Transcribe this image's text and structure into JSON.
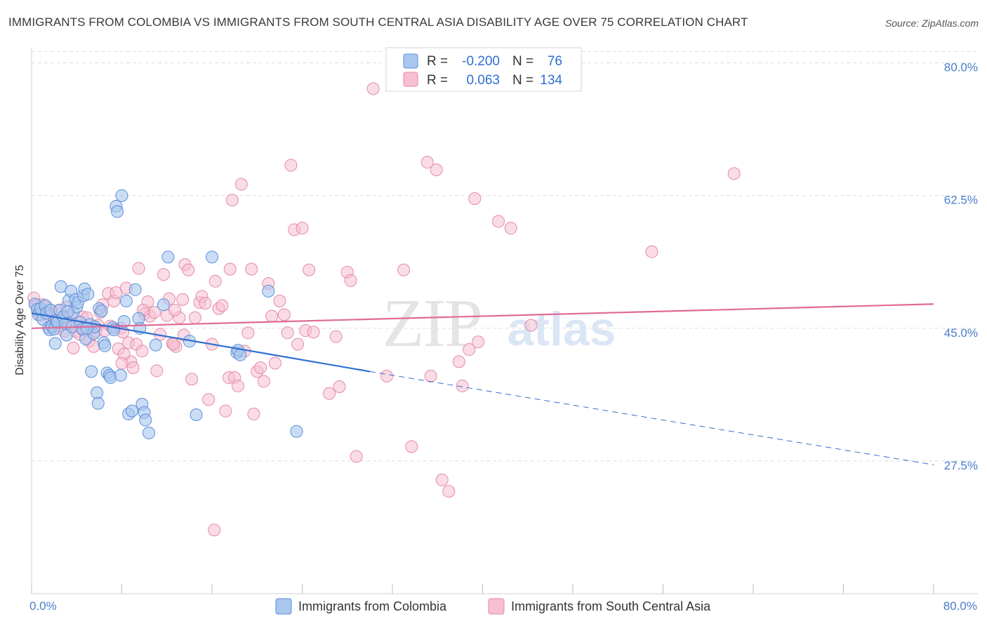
{
  "title": "IMMIGRANTS FROM COLOMBIA VS IMMIGRANTS FROM SOUTH CENTRAL ASIA DISABILITY AGE OVER 75 CORRELATION CHART",
  "source": "Source: ZipAtlas.com",
  "watermark": {
    "zip": "ZIP",
    "atlas": "atlas"
  },
  "colors": {
    "blue_fill": "#a9c6ee",
    "blue_stroke": "#5b8fd9",
    "blue_line": "#2f6fd0",
    "pink_fill": "#f6bfd2",
    "pink_stroke": "#e58aaa",
    "pink_line": "#e06b95",
    "grid": "#dddddd",
    "axis_text": "#4a7cc9"
  },
  "legend": {
    "rows": [
      {
        "r_label": "R =",
        "r_value": "-0.200",
        "n_label": "N =",
        "n_value": "76",
        "series": "blue"
      },
      {
        "r_label": "R =",
        "r_value": "0.063",
        "n_label": "N =",
        "n_value": "134",
        "series": "pink"
      }
    ]
  },
  "bottom_legend": [
    {
      "label": "Immigrants from Colombia",
      "series": "blue"
    },
    {
      "label": "Immigrants from South Central Asia",
      "series": "pink"
    }
  ],
  "chart_data": {
    "type": "scatter",
    "title": "IMMIGRANTS FROM COLOMBIA VS IMMIGRANTS FROM SOUTH CENTRAL ASIA DISABILITY AGE OVER 75 CORRELATION CHART",
    "xlabel": "",
    "ylabel": "Disability Age Over 75",
    "xlim": [
      0,
      80
    ],
    "ylim": [
      10,
      82
    ],
    "x_tick_labels": [
      "0.0%",
      "80.0%"
    ],
    "y_ticks": [
      27.5,
      45.0,
      62.5,
      80.0
    ],
    "y_tick_labels": [
      "27.5%",
      "45.0%",
      "62.5%",
      "80.0%"
    ],
    "grid": true,
    "legend_position": "top-center",
    "series": [
      {
        "name": "Immigrants from Colombia",
        "color": "#a9c6ee",
        "trend": {
          "x": [
            0,
            30
          ],
          "y": [
            47.0,
            39.3
          ],
          "dashed_to": [
            80,
            27.0
          ]
        },
        "points": [
          [
            0.3,
            48.2
          ],
          [
            0.5,
            47.5
          ],
          [
            0.6,
            46.8
          ],
          [
            0.8,
            47.6
          ],
          [
            1.0,
            46.2
          ],
          [
            1.2,
            48.0
          ],
          [
            1.3,
            47.0
          ],
          [
            1.5,
            45.1
          ],
          [
            1.6,
            44.8
          ],
          [
            1.7,
            47.4
          ],
          [
            1.8,
            45.3
          ],
          [
            2.0,
            44.9
          ],
          [
            2.1,
            43.0
          ],
          [
            2.2,
            46.0
          ],
          [
            2.3,
            45.8
          ],
          [
            2.5,
            47.4
          ],
          [
            2.6,
            50.5
          ],
          [
            2.8,
            46.5
          ],
          [
            3.0,
            45.6
          ],
          [
            3.1,
            44.1
          ],
          [
            3.3,
            48.7
          ],
          [
            3.5,
            49.9
          ],
          [
            3.6,
            45.2
          ],
          [
            3.7,
            47.1
          ],
          [
            3.9,
            48.8
          ],
          [
            4.0,
            47.8
          ],
          [
            4.1,
            48.4
          ],
          [
            4.3,
            45.8
          ],
          [
            4.5,
            44.9
          ],
          [
            4.6,
            49.3
          ],
          [
            4.7,
            50.2
          ],
          [
            4.8,
            43.6
          ],
          [
            5.0,
            49.5
          ],
          [
            5.2,
            45.5
          ],
          [
            5.3,
            39.3
          ],
          [
            5.5,
            44.3
          ],
          [
            5.6,
            45.2
          ],
          [
            5.8,
            36.5
          ],
          [
            5.9,
            35.1
          ],
          [
            6.0,
            47.6
          ],
          [
            6.2,
            47.3
          ],
          [
            6.4,
            43.1
          ],
          [
            6.5,
            42.7
          ],
          [
            6.7,
            39.1
          ],
          [
            6.9,
            38.8
          ],
          [
            7.0,
            38.5
          ],
          [
            7.2,
            45.1
          ],
          [
            7.3,
            44.8
          ],
          [
            7.5,
            61.1
          ],
          [
            7.6,
            60.4
          ],
          [
            7.9,
            38.8
          ],
          [
            8.2,
            45.9
          ],
          [
            8.4,
            48.6
          ],
          [
            8.6,
            33.7
          ],
          [
            8.9,
            34.1
          ],
          [
            9.2,
            50.1
          ],
          [
            9.5,
            46.3
          ],
          [
            9.6,
            45.0
          ],
          [
            9.8,
            35.0
          ],
          [
            10.0,
            33.9
          ],
          [
            10.1,
            32.9
          ],
          [
            10.4,
            31.2
          ],
          [
            11.0,
            42.8
          ],
          [
            11.7,
            48.1
          ],
          [
            12.1,
            54.4
          ],
          [
            14.0,
            43.3
          ],
          [
            14.6,
            33.6
          ],
          [
            16.0,
            54.4
          ],
          [
            18.2,
            41.8
          ],
          [
            18.3,
            42.1
          ],
          [
            18.5,
            41.5
          ],
          [
            21.0,
            49.9
          ],
          [
            23.5,
            31.4
          ],
          [
            8.0,
            62.5
          ],
          [
            3.2,
            47.2
          ],
          [
            4.9,
            45.0
          ]
        ]
      },
      {
        "name": "Immigrants from South Central Asia",
        "color": "#f6bfd2",
        "trend": {
          "x": [
            0,
            80
          ],
          "y": [
            45.0,
            48.2
          ]
        },
        "points": [
          [
            0.2,
            49.0
          ],
          [
            0.4,
            48.0
          ],
          [
            0.6,
            47.2
          ],
          [
            0.8,
            46.7
          ],
          [
            1.0,
            48.1
          ],
          [
            1.3,
            47.9
          ],
          [
            1.5,
            46.9
          ],
          [
            1.7,
            46.4
          ],
          [
            1.9,
            45.1
          ],
          [
            2.1,
            46.8
          ],
          [
            2.3,
            47.3
          ],
          [
            2.5,
            45.4
          ],
          [
            2.7,
            46.2
          ],
          [
            2.9,
            44.6
          ],
          [
            3.1,
            47.8
          ],
          [
            3.3,
            45.6
          ],
          [
            3.5,
            46.7
          ],
          [
            3.7,
            42.4
          ],
          [
            3.9,
            44.6
          ],
          [
            4.1,
            45.3
          ],
          [
            4.3,
            44.2
          ],
          [
            4.5,
            46.5
          ],
          [
            4.7,
            44.8
          ],
          [
            4.9,
            46.4
          ],
          [
            5.1,
            43.3
          ],
          [
            5.3,
            44.9
          ],
          [
            5.5,
            42.6
          ],
          [
            5.7,
            44.6
          ],
          [
            5.9,
            45.4
          ],
          [
            6.1,
            47.1
          ],
          [
            6.3,
            48.1
          ],
          [
            6.5,
            44.7
          ],
          [
            6.8,
            49.6
          ],
          [
            7.0,
            45.3
          ],
          [
            7.3,
            48.6
          ],
          [
            7.5,
            49.7
          ],
          [
            7.7,
            42.3
          ],
          [
            7.9,
            45.0
          ],
          [
            8.1,
            44.5
          ],
          [
            8.4,
            50.3
          ],
          [
            8.6,
            43.1
          ],
          [
            8.8,
            40.6
          ],
          [
            9.0,
            39.8
          ],
          [
            9.3,
            42.9
          ],
          [
            9.5,
            52.9
          ],
          [
            9.8,
            42.0
          ],
          [
            10.0,
            46.9
          ],
          [
            10.3,
            48.5
          ],
          [
            10.5,
            46.6
          ],
          [
            10.9,
            47.1
          ],
          [
            11.1,
            39.4
          ],
          [
            11.4,
            44.2
          ],
          [
            11.7,
            52.1
          ],
          [
            12.0,
            46.7
          ],
          [
            12.2,
            48.9
          ],
          [
            12.5,
            43.0
          ],
          [
            12.8,
            42.6
          ],
          [
            13.1,
            46.4
          ],
          [
            13.4,
            48.8
          ],
          [
            13.6,
            53.4
          ],
          [
            13.9,
            52.7
          ],
          [
            14.2,
            38.3
          ],
          [
            14.5,
            46.4
          ],
          [
            14.9,
            48.4
          ],
          [
            15.1,
            49.2
          ],
          [
            15.4,
            48.3
          ],
          [
            15.7,
            35.6
          ],
          [
            16.0,
            42.9
          ],
          [
            16.3,
            51.2
          ],
          [
            16.6,
            47.6
          ],
          [
            16.9,
            48.0
          ],
          [
            17.2,
            34.1
          ],
          [
            17.5,
            38.5
          ],
          [
            17.8,
            61.9
          ],
          [
            18.0,
            38.5
          ],
          [
            18.3,
            37.4
          ],
          [
            18.6,
            64.0
          ],
          [
            18.9,
            42.0
          ],
          [
            19.2,
            44.4
          ],
          [
            19.5,
            52.8
          ],
          [
            19.7,
            33.7
          ],
          [
            20.0,
            39.3
          ],
          [
            20.3,
            39.8
          ],
          [
            20.6,
            38.0
          ],
          [
            21.0,
            50.9
          ],
          [
            21.3,
            46.6
          ],
          [
            21.6,
            40.4
          ],
          [
            22.0,
            48.6
          ],
          [
            22.4,
            46.8
          ],
          [
            22.7,
            44.4
          ],
          [
            23.0,
            66.5
          ],
          [
            23.3,
            58.0
          ],
          [
            23.6,
            42.9
          ],
          [
            24.0,
            58.2
          ],
          [
            24.3,
            44.7
          ],
          [
            24.6,
            52.7
          ],
          [
            25.0,
            44.5
          ],
          [
            26.4,
            36.4
          ],
          [
            27.0,
            43.9
          ],
          [
            27.3,
            37.3
          ],
          [
            28.0,
            52.4
          ],
          [
            28.3,
            51.3
          ],
          [
            28.8,
            28.1
          ],
          [
            30.3,
            76.6
          ],
          [
            31.5,
            38.7
          ],
          [
            33.0,
            52.7
          ],
          [
            33.7,
            29.4
          ],
          [
            35.1,
            66.9
          ],
          [
            35.4,
            38.7
          ],
          [
            35.9,
            65.9
          ],
          [
            36.4,
            25.0
          ],
          [
            37.0,
            23.5
          ],
          [
            37.9,
            40.6
          ],
          [
            38.2,
            37.4
          ],
          [
            38.8,
            42.2
          ],
          [
            39.3,
            62.1
          ],
          [
            39.6,
            43.2
          ],
          [
            41.4,
            59.1
          ],
          [
            42.5,
            58.2
          ],
          [
            44.3,
            45.4
          ],
          [
            55.0,
            55.1
          ],
          [
            62.3,
            65.4
          ],
          [
            17.6,
            52.8
          ],
          [
            12.7,
            47.4
          ],
          [
            13.5,
            44.1
          ],
          [
            16.2,
            18.4
          ],
          [
            9.9,
            47.4
          ],
          [
            12.6,
            42.9
          ],
          [
            8.2,
            41.6
          ],
          [
            8.0,
            40.4
          ]
        ]
      }
    ]
  }
}
